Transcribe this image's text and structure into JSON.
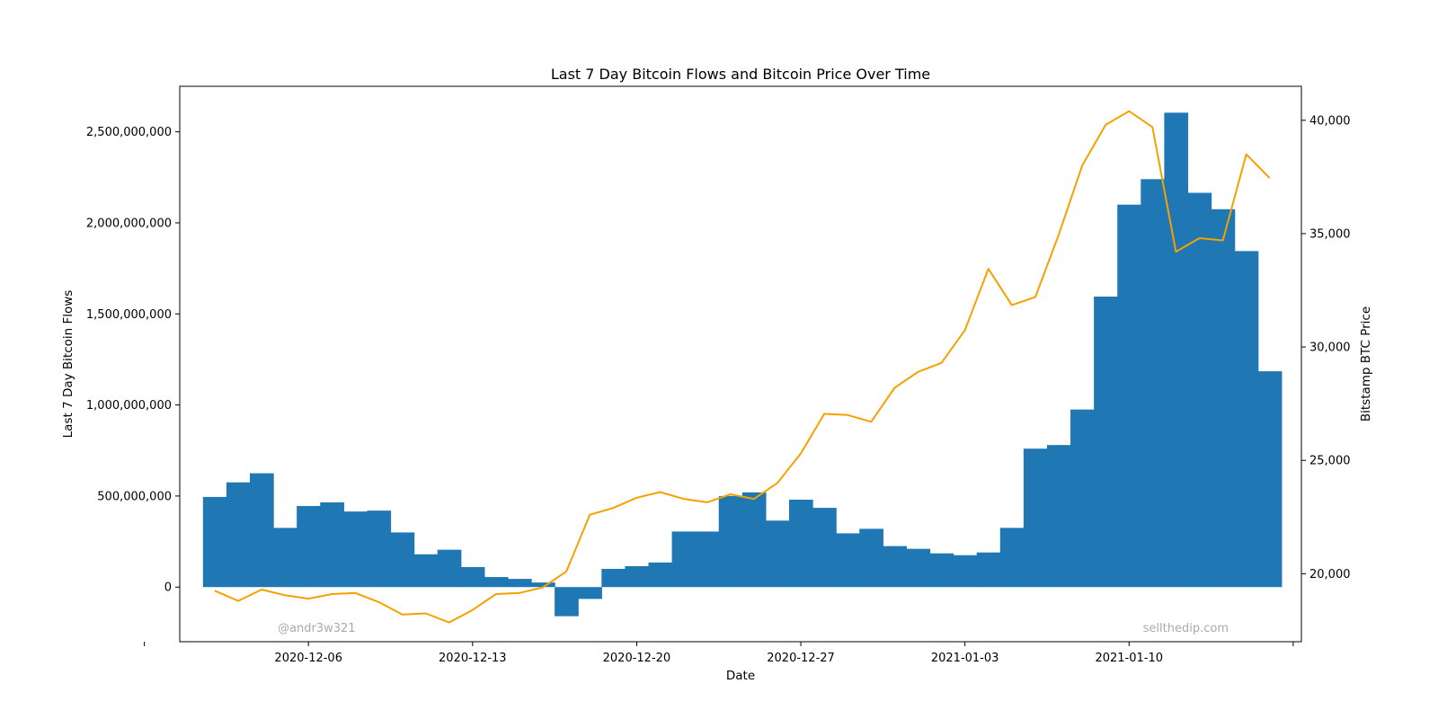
{
  "chart_data": {
    "type": "bar",
    "title": "Last 7 Day Bitcoin Flows and Bitcoin Price Over Time",
    "xlabel": "Date",
    "ylabel": "Last 7 Day Bitcoin Flows",
    "y2label": "Bitstamp BTC Price",
    "x_ticks": [
      "2020-12-06",
      "2020-12-13",
      "2020-12-20",
      "2020-12-27",
      "2021-01-03",
      "2021-01-10"
    ],
    "y_ticks": [
      "0",
      "500,000,000",
      "1,000,000,000",
      "1,500,000,000",
      "2,000,000,000",
      "2,500,000,000"
    ],
    "y2_ticks": [
      "20,000",
      "25,000",
      "30,000",
      "35,000",
      "40,000"
    ],
    "ylim": [
      -300000000,
      2750000000
    ],
    "y2lim": [
      17000,
      41500
    ],
    "grid": false,
    "dates": [
      "2020-12-02",
      "2020-12-03",
      "2020-12-04",
      "2020-12-05",
      "2020-12-06",
      "2020-12-07",
      "2020-12-08",
      "2020-12-09",
      "2020-12-10",
      "2020-12-11",
      "2020-12-12",
      "2020-12-13",
      "2020-12-14",
      "2020-12-15",
      "2020-12-16",
      "2020-12-17",
      "2020-12-18",
      "2020-12-19",
      "2020-12-20",
      "2020-12-21",
      "2020-12-22",
      "2020-12-23",
      "2020-12-24",
      "2020-12-25",
      "2020-12-26",
      "2020-12-27",
      "2020-12-28",
      "2020-12-29",
      "2020-12-30",
      "2020-12-31",
      "2021-01-01",
      "2021-01-02",
      "2021-01-03",
      "2021-01-04",
      "2021-01-05",
      "2021-01-06",
      "2021-01-07",
      "2021-01-08",
      "2021-01-09",
      "2021-01-10",
      "2021-01-11",
      "2021-01-12",
      "2021-01-13",
      "2021-01-14",
      "2021-01-15",
      "2021-01-16"
    ],
    "series": [
      {
        "name": "Last 7 Day Bitcoin Flows",
        "kind": "bar",
        "color": "#1f77b4",
        "values": [
          495000000,
          575000000,
          625000000,
          325000000,
          445000000,
          465000000,
          415000000,
          420000000,
          300000000,
          180000000,
          205000000,
          110000000,
          55000000,
          45000000,
          25000000,
          -160000000,
          -65000000,
          100000000,
          115000000,
          135000000,
          305000000,
          305000000,
          500000000,
          520000000,
          365000000,
          480000000,
          435000000,
          295000000,
          320000000,
          225000000,
          210000000,
          185000000,
          175000000,
          190000000,
          325000000,
          760000000,
          780000000,
          975000000,
          1595000000,
          2100000000,
          2240000000,
          2605000000,
          2165000000,
          2075000000,
          1845000000,
          1185000000
        ]
      },
      {
        "name": "Bitstamp BTC Price",
        "kind": "line",
        "color": "#f5a100",
        "values": [
          19250,
          18800,
          19300,
          19050,
          18900,
          19100,
          19150,
          18750,
          18200,
          18250,
          17850,
          18400,
          19100,
          19150,
          19400,
          20100,
          22600,
          22900,
          23350,
          23600,
          23300,
          23150,
          23500,
          23300,
          24000,
          25300,
          27050,
          27000,
          26700,
          28200,
          28900,
          29300,
          30750,
          33450,
          31850,
          32200,
          34950,
          38000,
          39800,
          40400,
          39700,
          34200,
          34800,
          34700,
          38500,
          37450
        ]
      }
    ],
    "annotations": [
      "@andr3w321",
      "sellthedip.com"
    ]
  }
}
